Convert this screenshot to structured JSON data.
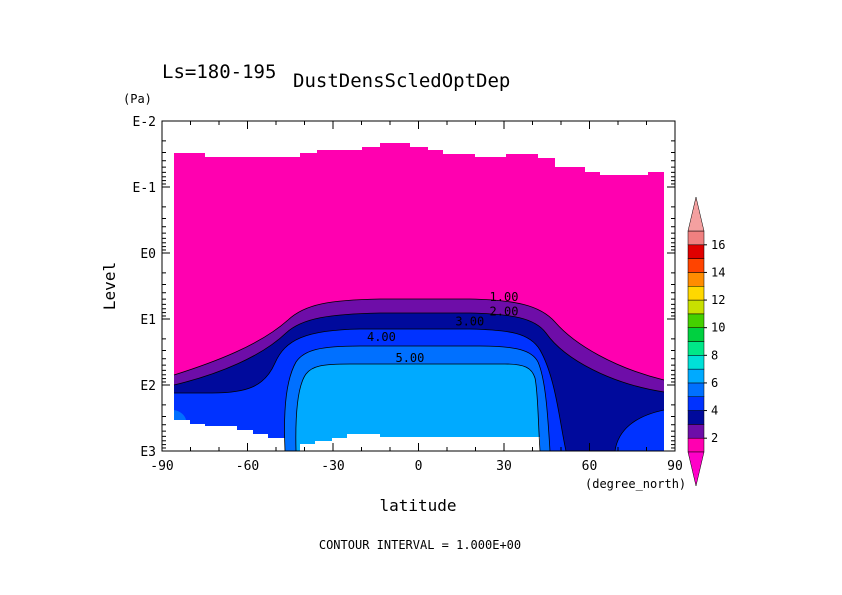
{
  "header": {
    "period": "Ls=180-195",
    "variable": "DustDensScledOptDep"
  },
  "footer": {
    "contour_interval": "CONTOUR INTERVAL = 1.000E+00"
  },
  "chart_data": {
    "type": "contour",
    "title": "DustDensScledOptDep",
    "subtitle": "Ls=180-195",
    "xlabel": "latitude",
    "xunit": "(degree_north)",
    "ylabel": "Level",
    "yunit": "(Pa)",
    "xlim": [
      -90,
      90
    ],
    "ylim_log10": [
      -2,
      3
    ],
    "y_scale": "log",
    "y_direction": "down",
    "x_ticks": [
      "-90",
      "-60",
      "-30",
      "0",
      "30",
      "60",
      "90"
    ],
    "y_ticks": [
      "E-2",
      "E-1",
      "E0",
      "E1",
      "E2",
      "E3"
    ],
    "contour_interval": 1.0,
    "contour_labels": [
      {
        "text": "1.00",
        "lat": 30,
        "level_log10": 0.73
      },
      {
        "text": "2.00",
        "lat": 30,
        "level_log10": 0.95
      },
      {
        "text": "3.00",
        "lat": 18,
        "level_log10": 1.1
      },
      {
        "text": "4.00",
        "lat": -13,
        "level_log10": 1.33
      },
      {
        "text": "5.00",
        "lat": -3,
        "level_log10": 1.65
      }
    ],
    "colorbar": {
      "levels": [
        {
          "min": 1,
          "max": 2,
          "color": "#ff00b0"
        },
        {
          "min": 2,
          "max": 3,
          "color": "#6e0da8"
        },
        {
          "min": 3,
          "max": 4,
          "color": "#000a9c"
        },
        {
          "min": 4,
          "max": 5,
          "color": "#0032ff"
        },
        {
          "min": 5,
          "max": 6,
          "color": "#0070ff"
        },
        {
          "min": 6,
          "max": 7,
          "color": "#00aaff"
        },
        {
          "min": 7,
          "max": 8,
          "color": "#00e0d8"
        },
        {
          "min": 8,
          "max": 9,
          "color": "#00e888"
        },
        {
          "min": 9,
          "max": 10,
          "color": "#00d040"
        },
        {
          "min": 10,
          "max": 11,
          "color": "#44d000"
        },
        {
          "min": 11,
          "max": 12,
          "color": "#c8e000"
        },
        {
          "min": 12,
          "max": 13,
          "color": "#ffd800"
        },
        {
          "min": 13,
          "max": 14,
          "color": "#ff8c00"
        },
        {
          "min": 14,
          "max": 15,
          "color": "#ff4400"
        },
        {
          "min": 15,
          "max": 16,
          "color": "#e00000"
        },
        {
          "min": 16,
          "max": 17,
          "color": "#f08080"
        }
      ],
      "tick_labels": [
        "2",
        "4",
        "6",
        "8",
        "10",
        "12",
        "14",
        "16"
      ],
      "under_color": "#ff00c8",
      "over_color": "#f4a0a0"
    }
  }
}
